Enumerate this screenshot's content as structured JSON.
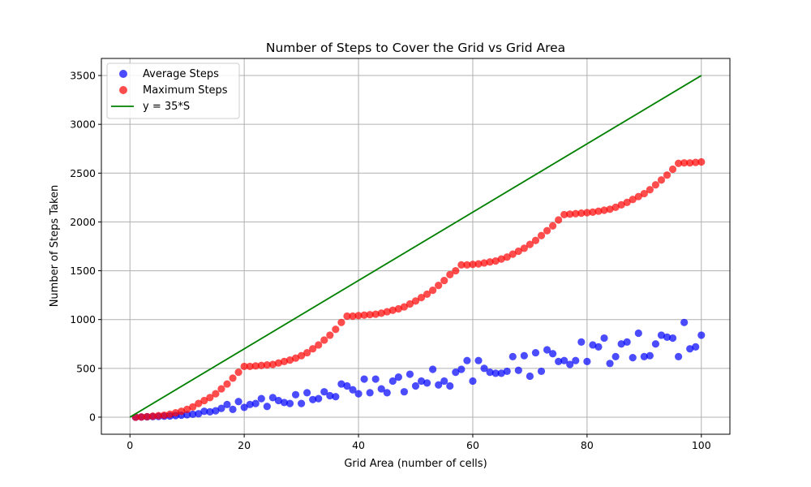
{
  "chart_data": {
    "type": "scatter",
    "title": "Number of Steps to Cover the Grid vs Grid Area",
    "xlabel": "Grid Area (number of cells)",
    "ylabel": "Number of Steps Taken",
    "xlim": [
      -5,
      105
    ],
    "ylim": [
      -175,
      3675
    ],
    "xticks": [
      0,
      20,
      40,
      60,
      80,
      100
    ],
    "yticks": [
      0,
      500,
      1000,
      1500,
      2000,
      2500,
      3000,
      3500
    ],
    "grid": true,
    "legend_position": "upper-left",
    "series": [
      {
        "name": "Average Steps",
        "kind": "scatter",
        "color": "#0000ff",
        "x": [
          1,
          2,
          3,
          4,
          5,
          6,
          7,
          8,
          9,
          10,
          11,
          12,
          13,
          14,
          15,
          16,
          17,
          18,
          19,
          20,
          21,
          22,
          23,
          24,
          25,
          26,
          27,
          28,
          29,
          30,
          31,
          32,
          33,
          34,
          35,
          36,
          37,
          38,
          39,
          40,
          41,
          42,
          43,
          44,
          45,
          46,
          47,
          48,
          49,
          50,
          51,
          52,
          53,
          54,
          55,
          56,
          57,
          58,
          59,
          60,
          61,
          62,
          63,
          64,
          65,
          66,
          67,
          68,
          69,
          70,
          71,
          72,
          73,
          74,
          75,
          76,
          77,
          78,
          79,
          80,
          81,
          82,
          83,
          84,
          85,
          86,
          87,
          88,
          89,
          90,
          91,
          92,
          93,
          94,
          95,
          96,
          97,
          98,
          99,
          100
        ],
        "y": [
          0,
          2,
          4,
          6,
          8,
          10,
          12,
          16,
          20,
          25,
          30,
          35,
          60,
          55,
          65,
          90,
          130,
          80,
          160,
          100,
          130,
          140,
          190,
          110,
          200,
          170,
          150,
          140,
          230,
          140,
          250,
          180,
          190,
          260,
          220,
          210,
          340,
          320,
          280,
          240,
          390,
          250,
          390,
          290,
          250,
          370,
          410,
          260,
          440,
          320,
          370,
          350,
          490,
          330,
          370,
          320,
          460,
          490,
          580,
          370,
          580,
          500,
          460,
          450,
          450,
          470,
          620,
          480,
          630,
          420,
          660,
          470,
          690,
          650,
          570,
          580,
          540,
          580,
          770,
          570,
          740,
          720,
          810,
          550,
          620,
          750,
          770,
          610,
          860,
          620,
          630,
          750,
          840,
          820,
          810,
          620,
          970,
          700,
          720,
          840
        ]
      },
      {
        "name": "Maximum Steps",
        "kind": "scatter",
        "color": "#ff0000",
        "x": [
          1,
          2,
          3,
          4,
          5,
          6,
          7,
          8,
          9,
          10,
          11,
          12,
          13,
          14,
          15,
          16,
          17,
          18,
          19,
          20,
          21,
          22,
          23,
          24,
          25,
          26,
          27,
          28,
          29,
          30,
          31,
          32,
          33,
          34,
          35,
          36,
          37,
          38,
          39,
          40,
          41,
          42,
          43,
          44,
          45,
          46,
          47,
          48,
          49,
          50,
          51,
          52,
          53,
          54,
          55,
          56,
          57,
          58,
          59,
          60,
          61,
          62,
          63,
          64,
          65,
          66,
          67,
          68,
          69,
          70,
          71,
          72,
          73,
          74,
          75,
          76,
          77,
          78,
          79,
          80,
          81,
          82,
          83,
          84,
          85,
          86,
          87,
          88,
          89,
          90,
          91,
          92,
          93,
          94,
          95,
          96,
          97,
          98,
          99,
          100
        ],
        "y": [
          0,
          2,
          5,
          10,
          15,
          20,
          30,
          45,
          60,
          80,
          105,
          140,
          170,
          200,
          240,
          290,
          340,
          400,
          460,
          520,
          520,
          525,
          530,
          535,
          540,
          555,
          570,
          585,
          605,
          630,
          660,
          700,
          740,
          790,
          840,
          900,
          970,
          1035,
          1035,
          1040,
          1045,
          1050,
          1055,
          1065,
          1080,
          1095,
          1110,
          1130,
          1160,
          1190,
          1225,
          1260,
          1300,
          1350,
          1400,
          1460,
          1500,
          1560,
          1560,
          1565,
          1570,
          1580,
          1590,
          1600,
          1620,
          1640,
          1670,
          1700,
          1730,
          1770,
          1810,
          1860,
          1910,
          1960,
          2020,
          2075,
          2080,
          2085,
          2090,
          2095,
          2100,
          2110,
          2120,
          2130,
          2150,
          2175,
          2200,
          2230,
          2260,
          2290,
          2330,
          2380,
          2430,
          2480,
          2540,
          2600,
          2605,
          2605,
          2610,
          2615
        ]
      },
      {
        "name": "y = 35*S",
        "kind": "line",
        "color": "#008000",
        "x": [
          0,
          100
        ],
        "y": [
          0,
          3500
        ]
      }
    ]
  }
}
